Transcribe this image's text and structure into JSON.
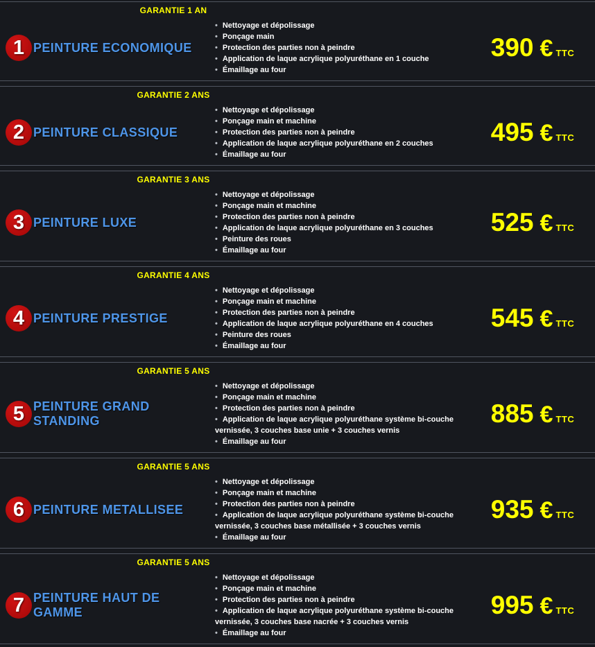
{
  "colors": {
    "background": "#17191e",
    "divider": "#505560",
    "warranty_yellow": "#ffff00",
    "title_blue": "#4e95e8",
    "badge_red": "#b90d0d",
    "price_yellow": "#ffff00",
    "feature_text": "#ffffff",
    "bullet_gray": "#b9bdc4"
  },
  "packages": [
    {
      "number": "1",
      "warranty": "GARANTIE 1 AN",
      "title": "PEINTURE ECONOMIQUE",
      "features": [
        "Nettoyage et dépolissage",
        "Ponçage main",
        "Protection des parties non à peindre",
        "Application de laque acrylique polyuréthane en 1 couche",
        "Émaillage au four"
      ],
      "price": "390",
      "currency": "€",
      "tax_label": "TTC"
    },
    {
      "number": "2",
      "warranty": "GARANTIE 2 ANS",
      "title": "PEINTURE CLASSIQUE",
      "features": [
        "Nettoyage et dépolissage",
        "Ponçage main et machine",
        "Protection des parties non à peindre",
        "Application de laque acrylique polyuréthane en 2 couches",
        "Émaillage au four"
      ],
      "price": "495",
      "currency": "€",
      "tax_label": "TTC"
    },
    {
      "number": "3",
      "warranty": "GARANTIE 3 ANS",
      "title": "PEINTURE LUXE",
      "features": [
        "Nettoyage et dépolissage",
        "Ponçage main et machine",
        "Protection des parties non à peindre",
        "Application de laque acrylique polyuréthane en 3 couches",
        "Peinture des roues",
        "Émaillage au four"
      ],
      "price": "525",
      "currency": "€",
      "tax_label": "TTC"
    },
    {
      "number": "4",
      "warranty": "GARANTIE 4 ANS",
      "title": "PEINTURE PRESTIGE",
      "features": [
        "Nettoyage et dépolissage",
        "Ponçage main et machine",
        "Protection des parties non à peindre",
        "Application de laque acrylique polyuréthane en 4 couches",
        "Peinture des roues",
        "Émaillage au four"
      ],
      "price": "545",
      "currency": "€",
      "tax_label": "TTC"
    },
    {
      "number": "5",
      "warranty": "GARANTIE 5 ANS",
      "title": "PEINTURE GRAND STANDING",
      "features": [
        "Nettoyage et dépolissage",
        "Ponçage main et machine",
        "Protection des parties non à peindre",
        "Application de laque acrylique polyuréthane système bi-couche vernissée, 3 couches base unie + 3 couches vernis",
        "Émaillage au four"
      ],
      "price": "885",
      "currency": "€",
      "tax_label": "TTC"
    },
    {
      "number": "6",
      "warranty": "GARANTIE 5 ANS",
      "title": "PEINTURE METALLISEE",
      "features": [
        "Nettoyage et dépolissage",
        "Ponçage main et machine",
        "Protection des parties non à peindre",
        "Application de laque acrylique polyuréthane système bi-couche vernissée, 3 couches base métallisée + 3 couches vernis",
        "Émaillage au four"
      ],
      "price": "935",
      "currency": "€",
      "tax_label": "TTC"
    },
    {
      "number": "7",
      "warranty": "GARANTIE 5 ANS",
      "title": "PEINTURE HAUT DE GAMME",
      "features": [
        "Nettoyage et dépolissage",
        "Ponçage main et machine",
        "Protection des parties non à peindre",
        "Application de laque acrylique polyuréthane système bi-couche vernissée, 3 couches base nacrée + 3 couches vernis",
        "Émaillage au four"
      ],
      "price": "995",
      "currency": "€",
      "tax_label": "TTC"
    }
  ]
}
